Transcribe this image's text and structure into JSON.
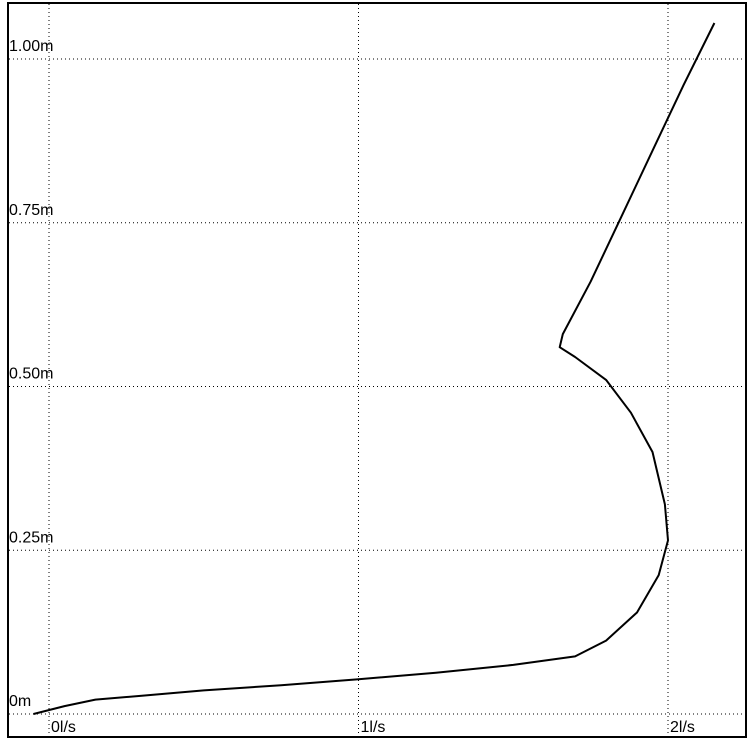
{
  "chart_data": {
    "type": "line",
    "title": "",
    "xlabel": "",
    "ylabel": "",
    "x_unit": "l/s",
    "y_unit": "m",
    "xlim": [
      0,
      2.2
    ],
    "ylim": [
      0,
      1.08
    ],
    "grid": true,
    "x_ticks": [
      {
        "value": 0,
        "label": "0l/s"
      },
      {
        "value": 1,
        "label": "1l/s"
      },
      {
        "value": 2,
        "label": "2l/s"
      }
    ],
    "y_ticks": [
      {
        "value": 0,
        "label": "0m"
      },
      {
        "value": 0.25,
        "label": "0.25m"
      },
      {
        "value": 0.5,
        "label": "0.50m"
      },
      {
        "value": 0.75,
        "label": "0.75m"
      },
      {
        "value": 1.0,
        "label": "1.00m"
      }
    ],
    "series": [
      {
        "color": "#000000",
        "points": [
          [
            -0.05,
            0.0
          ],
          [
            0.05,
            0.012
          ],
          [
            0.15,
            0.022
          ],
          [
            0.3,
            0.028
          ],
          [
            0.5,
            0.036
          ],
          [
            0.75,
            0.044
          ],
          [
            1.0,
            0.053
          ],
          [
            1.25,
            0.063
          ],
          [
            1.5,
            0.075
          ],
          [
            1.7,
            0.088
          ],
          [
            1.8,
            0.112
          ],
          [
            1.9,
            0.155
          ],
          [
            1.97,
            0.212
          ],
          [
            2.0,
            0.265
          ],
          [
            1.99,
            0.32
          ],
          [
            1.95,
            0.4
          ],
          [
            1.88,
            0.46
          ],
          [
            1.8,
            0.51
          ],
          [
            1.7,
            0.545
          ],
          [
            1.65,
            0.56
          ],
          [
            1.66,
            0.58
          ],
          [
            1.75,
            0.66
          ],
          [
            1.85,
            0.76
          ],
          [
            1.95,
            0.86
          ],
          [
            2.05,
            0.96
          ],
          [
            2.15,
            1.055
          ]
        ]
      }
    ]
  }
}
